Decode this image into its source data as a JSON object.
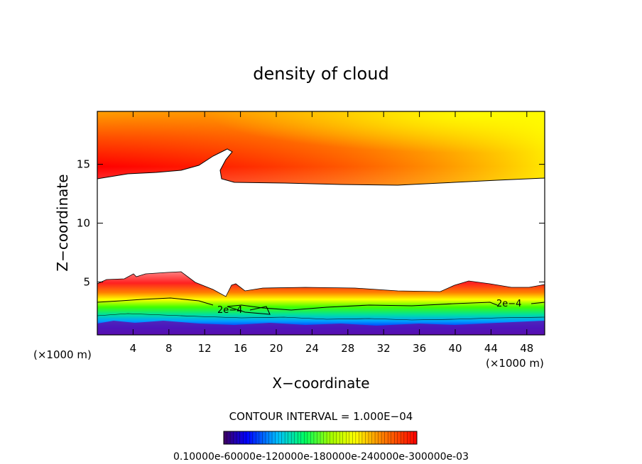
{
  "chart_data": {
    "type": "heatmap",
    "title": "density of cloud",
    "xlabel": "X−coordinate",
    "ylabel": "Z−coordinate",
    "x_unit_left": "(×1000 m)",
    "x_unit_right": "(×1000 m)",
    "xlim": [
      0,
      50
    ],
    "ylim": [
      0.5,
      19.5
    ],
    "x_ticks": [
      4,
      8,
      12,
      16,
      20,
      24,
      28,
      32,
      36,
      40,
      44,
      48
    ],
    "y_ticks": [
      5,
      10,
      15
    ],
    "x_tick_labels": [
      "4",
      "8",
      "12",
      "16",
      "20",
      "24",
      "28",
      "32",
      "36",
      "40",
      "44",
      "48"
    ],
    "y_tick_labels": [
      "5",
      "10",
      "15"
    ],
    "contour_labels": [
      {
        "text": "2e−4",
        "x": 15.0,
        "z": 2.4
      },
      {
        "text": "2e−4",
        "x": 47.0,
        "z": 3.0
      }
    ],
    "contour_interval_text": "CONTOUR INTERVAL = 1.000E−04",
    "colorbar_labels_text": "0.10000e-60000e-120000e-180000e-240000e-300000e-03",
    "colorbar_range": [
      0.0,
      0.0003
    ],
    "colors": {
      "high": "#ff0000",
      "top_high": "#ffff00",
      "mid": "#00ff00",
      "low": "#0000ff",
      "lowest": "#400080"
    }
  }
}
